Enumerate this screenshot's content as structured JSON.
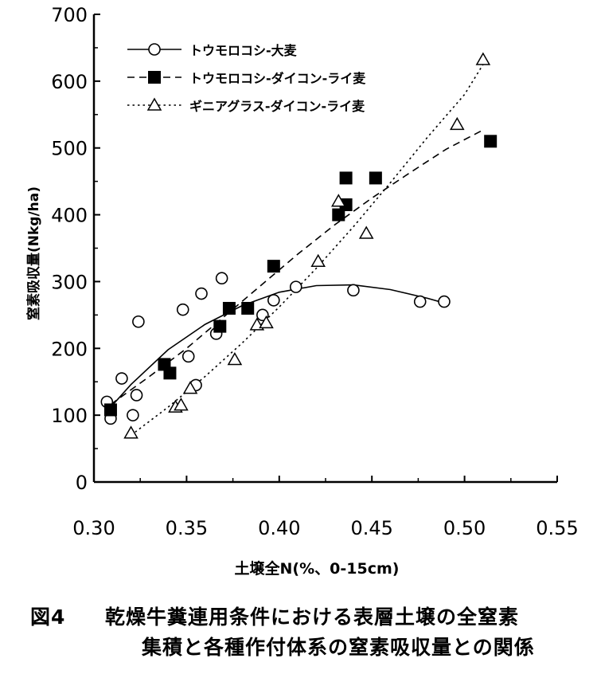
{
  "chart_data": {
    "type": "scatter",
    "xlabel": "土壌全N(%、0-15cm)",
    "ylabel": "窒素吸収量(Nkg/ha)",
    "xlim": [
      0.3,
      0.55
    ],
    "ylim": [
      0,
      700
    ],
    "x_ticks": [
      "0.30",
      "0.35",
      "0.40",
      "0.45",
      "0.50",
      "0.55"
    ],
    "y_ticks": [
      "0",
      "100",
      "200",
      "300",
      "400",
      "500",
      "600",
      "700"
    ],
    "x_tick_values": [
      0.3,
      0.35,
      0.4,
      0.45,
      0.5,
      0.55
    ],
    "y_tick_values": [
      0,
      100,
      200,
      300,
      400,
      500,
      600,
      700
    ],
    "legend_position": "top-left",
    "series": [
      {
        "name": "トウモロコシ-大麦",
        "marker": "circle-open",
        "line": "solid",
        "points": [
          [
            0.307,
            120
          ],
          [
            0.309,
            95
          ],
          [
            0.315,
            155
          ],
          [
            0.321,
            100
          ],
          [
            0.323,
            130
          ],
          [
            0.324,
            240
          ],
          [
            0.348,
            258
          ],
          [
            0.351,
            188
          ],
          [
            0.355,
            145
          ],
          [
            0.358,
            282
          ],
          [
            0.366,
            222
          ],
          [
            0.369,
            305
          ],
          [
            0.391,
            250
          ],
          [
            0.397,
            272
          ],
          [
            0.409,
            292
          ],
          [
            0.44,
            287
          ],
          [
            0.476,
            270
          ],
          [
            0.489,
            270
          ]
        ],
        "fit": [
          [
            0.309,
            112
          ],
          [
            0.32,
            146
          ],
          [
            0.34,
            198
          ],
          [
            0.36,
            236
          ],
          [
            0.38,
            264
          ],
          [
            0.4,
            284
          ],
          [
            0.42,
            294
          ],
          [
            0.44,
            295
          ],
          [
            0.46,
            288
          ],
          [
            0.48,
            275
          ],
          [
            0.489,
            268
          ]
        ]
      },
      {
        "name": "トウモロコシ-ダイコン-ライ麦",
        "marker": "square-filled",
        "line": "dashed",
        "points": [
          [
            0.309,
            108
          ],
          [
            0.338,
            176
          ],
          [
            0.341,
            163
          ],
          [
            0.368,
            233
          ],
          [
            0.373,
            260
          ],
          [
            0.383,
            260
          ],
          [
            0.397,
            323
          ],
          [
            0.432,
            400
          ],
          [
            0.436,
            415
          ],
          [
            0.436,
            455
          ],
          [
            0.452,
            455
          ],
          [
            0.514,
            510
          ]
        ],
        "fit": [
          [
            0.309,
            116
          ],
          [
            0.33,
            158
          ],
          [
            0.35,
            200
          ],
          [
            0.37,
            247
          ],
          [
            0.39,
            294
          ],
          [
            0.41,
            341
          ],
          [
            0.43,
            385
          ],
          [
            0.45,
            425
          ],
          [
            0.47,
            462
          ],
          [
            0.49,
            498
          ],
          [
            0.51,
            527
          ]
        ]
      },
      {
        "name": "ギニアグラス-ダイコン-ライ麦",
        "marker": "triangle-open",
        "line": "dotted",
        "points": [
          [
            0.32,
            73
          ],
          [
            0.344,
            112
          ],
          [
            0.347,
            115
          ],
          [
            0.352,
            140
          ],
          [
            0.376,
            183
          ],
          [
            0.388,
            235
          ],
          [
            0.393,
            238
          ],
          [
            0.421,
            330
          ],
          [
            0.432,
            420
          ],
          [
            0.447,
            372
          ],
          [
            0.496,
            535
          ],
          [
            0.51,
            632
          ]
        ],
        "fit": [
          [
            0.32,
            70
          ],
          [
            0.34,
            112
          ],
          [
            0.36,
            158
          ],
          [
            0.38,
            208
          ],
          [
            0.4,
            262
          ],
          [
            0.42,
            320
          ],
          [
            0.44,
            382
          ],
          [
            0.46,
            448
          ],
          [
            0.48,
            516
          ],
          [
            0.5,
            580
          ],
          [
            0.51,
            625
          ]
        ]
      }
    ]
  },
  "caption": {
    "figure_label": "図4",
    "line1": "乾燥牛糞連用条件における表層土壌の全窒素",
    "line2": "集積と各種作付体系の窒素吸収量との関係"
  }
}
